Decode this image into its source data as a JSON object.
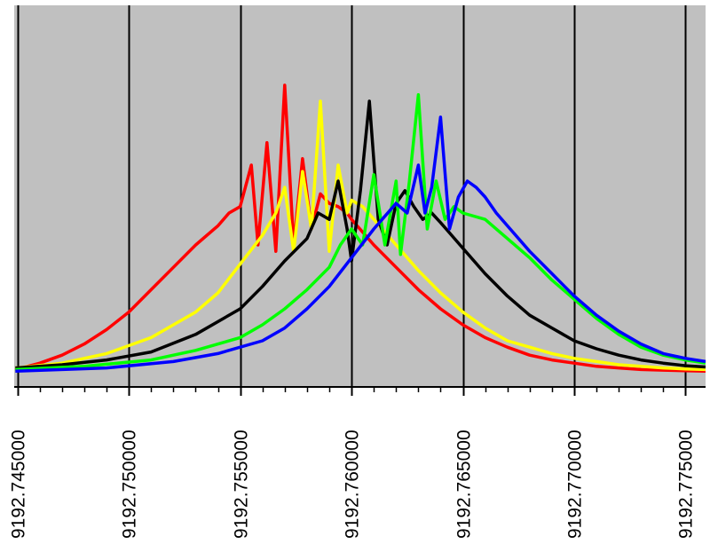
{
  "chart_data": {
    "type": "line",
    "title": "",
    "xlabel": "",
    "ylabel": "",
    "xlim": [
      9192.74485,
      9192.7759
    ],
    "ylim": [
      0,
      1
    ],
    "grid": "vertical",
    "legend": "none",
    "colors": {
      "plot_background": "#c0c0c0",
      "grid": "#000000",
      "axis": "#000000",
      "page": "#ffffff"
    },
    "x_ticks": [
      9192.745,
      9192.75,
      9192.755,
      9192.76,
      9192.765,
      9192.77,
      9192.775
    ],
    "x_tick_labels": [
      "9192.745000",
      "9192.750000",
      "9192.755000",
      "9192.760000",
      "9192.765000",
      "9192.770000",
      "9192.775000"
    ],
    "minor_tick_step": 0.001,
    "series": [
      {
        "color": "#ff0000",
        "x": [
          9192.7449,
          9192.746,
          9192.747,
          9192.748,
          9192.749,
          9192.75,
          9192.751,
          9192.752,
          9192.753,
          9192.754,
          9192.7545,
          9192.755,
          9192.7555,
          9192.7558,
          9192.7562,
          9192.7566,
          9192.757,
          9192.7574,
          9192.7578,
          9192.7582,
          9192.7586,
          9192.759,
          9192.7594,
          9192.7598,
          9192.76,
          9192.761,
          9192.762,
          9192.763,
          9192.764,
          9192.765,
          9192.766,
          9192.767,
          9192.768,
          9192.769,
          9192.77,
          9192.771,
          9192.772,
          9192.773,
          9192.774,
          9192.775,
          9192.7759
        ],
        "y": [
          0.01,
          0.03,
          0.055,
          0.09,
          0.135,
          0.19,
          0.26,
          0.33,
          0.4,
          0.46,
          0.5,
          0.52,
          0.65,
          0.4,
          0.72,
          0.38,
          0.9,
          0.4,
          0.67,
          0.45,
          0.56,
          0.53,
          0.52,
          0.5,
          0.48,
          0.4,
          0.33,
          0.26,
          0.2,
          0.15,
          0.11,
          0.08,
          0.055,
          0.04,
          0.03,
          0.02,
          0.015,
          0.01,
          0.008,
          0.006,
          0.005
        ]
      },
      {
        "color": "#ffff00",
        "x": [
          9192.7449,
          9192.747,
          9192.749,
          9192.751,
          9192.753,
          9192.754,
          9192.755,
          9192.756,
          9192.7566,
          9192.757,
          9192.7574,
          9192.7578,
          9192.7582,
          9192.7586,
          9192.759,
          9192.7594,
          9192.7598,
          9192.76,
          9192.7605,
          9192.761,
          9192.762,
          9192.763,
          9192.764,
          9192.765,
          9192.766,
          9192.767,
          9192.768,
          9192.769,
          9192.77,
          9192.771,
          9192.772,
          9192.773,
          9192.774,
          9192.775,
          9192.7759
        ],
        "y": [
          0.015,
          0.03,
          0.06,
          0.11,
          0.19,
          0.25,
          0.34,
          0.43,
          0.5,
          0.58,
          0.38,
          0.63,
          0.45,
          0.85,
          0.38,
          0.65,
          0.5,
          0.54,
          0.52,
          0.48,
          0.4,
          0.32,
          0.25,
          0.19,
          0.14,
          0.1,
          0.08,
          0.06,
          0.045,
          0.035,
          0.025,
          0.02,
          0.015,
          0.012,
          0.01
        ]
      },
      {
        "color": "#000000",
        "x": [
          9192.7449,
          9192.747,
          9192.749,
          9192.751,
          9192.753,
          9192.755,
          9192.756,
          9192.757,
          9192.758,
          9192.7585,
          9192.759,
          9192.7594,
          9192.7598,
          9192.76,
          9192.7604,
          9192.7608,
          9192.7612,
          9192.7616,
          9192.762,
          9192.7624,
          9192.7628,
          9192.7632,
          9192.7636,
          9192.764,
          9192.765,
          9192.766,
          9192.767,
          9192.768,
          9192.769,
          9192.77,
          9192.771,
          9192.772,
          9192.773,
          9192.774,
          9192.775,
          9192.7759
        ],
        "y": [
          0.015,
          0.025,
          0.04,
          0.065,
          0.12,
          0.2,
          0.27,
          0.35,
          0.42,
          0.5,
          0.48,
          0.6,
          0.45,
          0.35,
          0.57,
          0.85,
          0.48,
          0.4,
          0.53,
          0.57,
          0.52,
          0.48,
          0.5,
          0.47,
          0.39,
          0.31,
          0.24,
          0.18,
          0.14,
          0.1,
          0.075,
          0.055,
          0.04,
          0.03,
          0.022,
          0.018
        ]
      },
      {
        "color": "#00ff00",
        "x": [
          9192.7449,
          9192.748,
          9192.751,
          9192.753,
          9192.755,
          9192.756,
          9192.757,
          9192.758,
          9192.759,
          9192.7595,
          9192.76,
          9192.7605,
          9192.761,
          9192.7615,
          9192.762,
          9192.7622,
          9192.7626,
          9192.763,
          9192.7634,
          9192.7638,
          9192.7642,
          9192.7646,
          9192.765,
          9192.766,
          9192.767,
          9192.768,
          9192.769,
          9192.77,
          9192.771,
          9192.772,
          9192.773,
          9192.774,
          9192.775,
          9192.7759
        ],
        "y": [
          0.01,
          0.02,
          0.04,
          0.07,
          0.11,
          0.15,
          0.2,
          0.26,
          0.33,
          0.4,
          0.45,
          0.4,
          0.62,
          0.4,
          0.6,
          0.37,
          0.6,
          0.87,
          0.45,
          0.6,
          0.48,
          0.52,
          0.5,
          0.48,
          0.42,
          0.36,
          0.29,
          0.23,
          0.17,
          0.12,
          0.08,
          0.055,
          0.04,
          0.03
        ]
      },
      {
        "color": "#0000ff",
        "x": [
          9192.7449,
          9192.749,
          9192.752,
          9192.754,
          9192.756,
          9192.757,
          9192.758,
          9192.759,
          9192.76,
          9192.761,
          9192.762,
          9192.7625,
          9192.763,
          9192.7633,
          9192.7636,
          9192.764,
          9192.7644,
          9192.7648,
          9192.7652,
          9192.7656,
          9192.766,
          9192.7665,
          9192.767,
          9192.768,
          9192.769,
          9192.77,
          9192.771,
          9192.772,
          9192.773,
          9192.774,
          9192.775,
          9192.7759
        ],
        "y": [
          0.005,
          0.015,
          0.035,
          0.06,
          0.1,
          0.14,
          0.2,
          0.27,
          0.36,
          0.45,
          0.53,
          0.5,
          0.65,
          0.5,
          0.58,
          0.8,
          0.45,
          0.55,
          0.6,
          0.58,
          0.55,
          0.5,
          0.46,
          0.38,
          0.31,
          0.24,
          0.18,
          0.13,
          0.09,
          0.06,
          0.045,
          0.035
        ]
      }
    ]
  }
}
